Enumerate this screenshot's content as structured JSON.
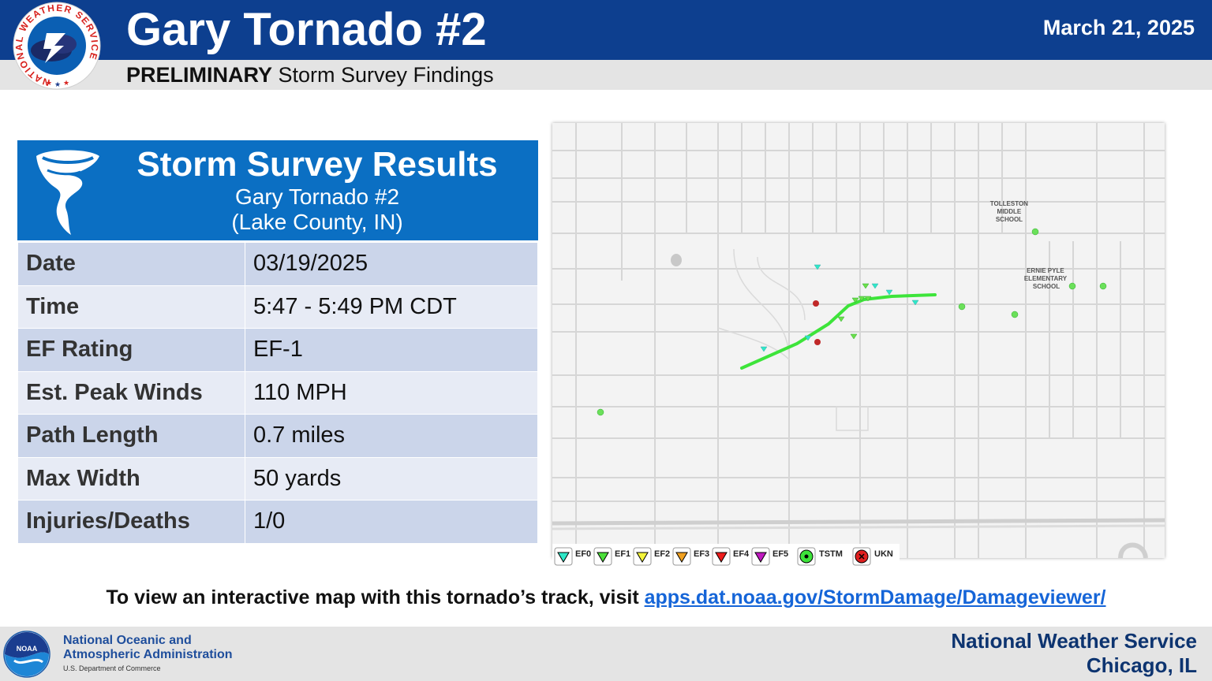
{
  "header": {
    "title": "Gary Tornado #2",
    "date": "March 21, 2025",
    "subtitle_bold": "PRELIMINARY",
    "subtitle_rest": " Storm Survey Findings",
    "logo_text": "NATIONAL WEATHER SERVICE"
  },
  "results": {
    "title": "Storm Survey Results",
    "subtitle": "Gary Tornado #2",
    "location": "(Lake County, IN)",
    "rows": [
      {
        "label": "Date",
        "value": "03/19/2025"
      },
      {
        "label": "Time",
        "value": "5:47 - 5:49 PM CDT"
      },
      {
        "label": "EF Rating",
        "value": "EF-1"
      },
      {
        "label": "Est. Peak Winds",
        "value": "110 MPH"
      },
      {
        "label": "Path Length",
        "value": "0.7 miles"
      },
      {
        "label": "Max Width",
        "value": "50 yards"
      },
      {
        "label": "Injuries/Deaths",
        "value": "1/0"
      }
    ]
  },
  "map": {
    "labels": {
      "tolleston": [
        "TOLLESTON",
        "MIDDLE",
        "SCHOOL"
      ],
      "ernie": [
        "ERNIE PYLE",
        "ELEMENTARY",
        "SCHOOL"
      ]
    },
    "track_color": "#3de43a",
    "legend": [
      {
        "label": "EF0",
        "color": "#2ee8c8"
      },
      {
        "label": "EF1",
        "color": "#4be03a"
      },
      {
        "label": "EF2",
        "color": "#f4f43a"
      },
      {
        "label": "EF3",
        "color": "#f0a020"
      },
      {
        "label": "EF4",
        "color": "#ee1c1c"
      },
      {
        "label": "EF5",
        "color": "#c019c0"
      },
      {
        "label": "TSTM",
        "color": "#3de43a"
      },
      {
        "label": "UKN",
        "color": "#e02020"
      }
    ]
  },
  "visit": {
    "text": "To view an interactive map with this tornado’s track, visit ",
    "link": "apps.dat.noaa.gov/StormDamage/Damageviewer/"
  },
  "footer": {
    "noaa_line1": "National Oceanic and",
    "noaa_line2": "Atmospheric Administration",
    "dept": "U.S. Department of Commerce",
    "noaa_logo_text": "NOAA",
    "office_line1": "National Weather Service",
    "office_line2": "Chicago, IL"
  }
}
